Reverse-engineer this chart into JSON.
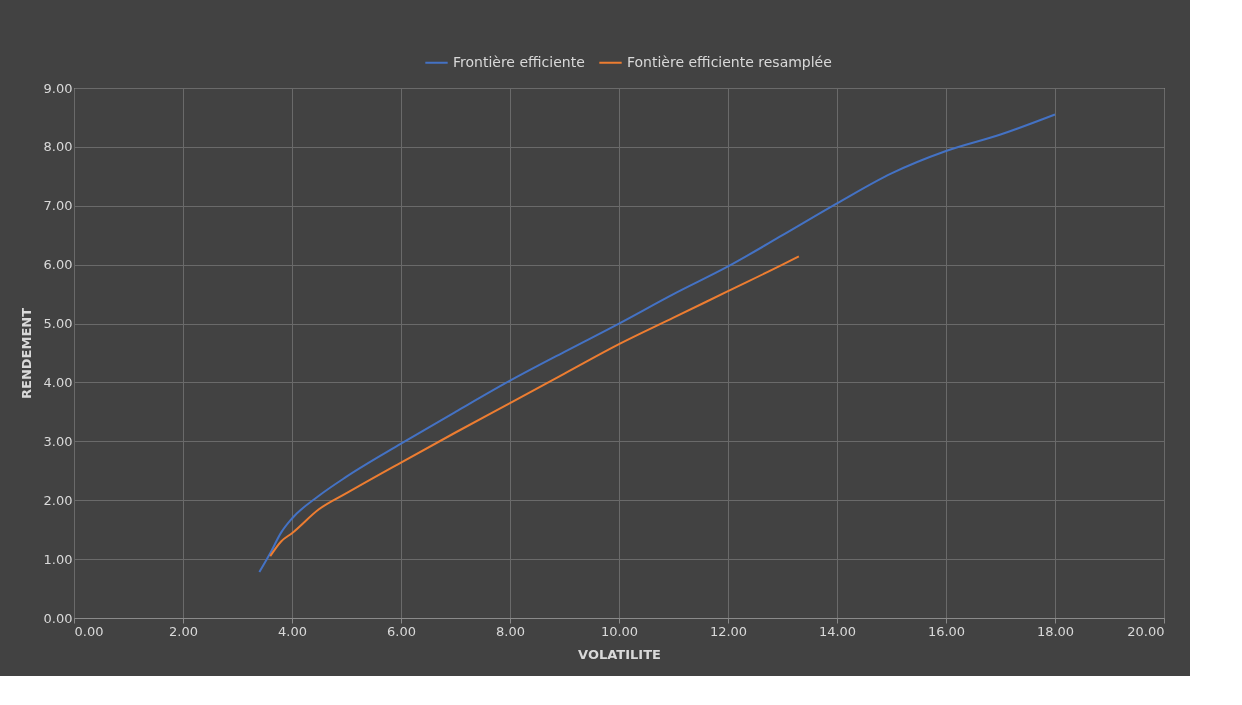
{
  "chart_data": {
    "type": "line",
    "xlabel": "VOLATILITE",
    "ylabel": "RENDEMENT",
    "xlim": [
      0,
      20
    ],
    "xticks": [
      {
        "value": 0,
        "label": "0.00"
      },
      {
        "value": 2,
        "label": "2.00"
      },
      {
        "value": 4,
        "label": "4.00"
      },
      {
        "value": 6,
        "label": "6.00"
      },
      {
        "value": 8,
        "label": "8.00"
      },
      {
        "value": 10,
        "label": "10.00"
      },
      {
        "value": 12,
        "label": "12.00"
      },
      {
        "value": 14,
        "label": "14.00"
      },
      {
        "value": 16,
        "label": "16.00"
      },
      {
        "value": 18,
        "label": "18.00"
      },
      {
        "value": 20,
        "label": "20.00"
      }
    ],
    "ylim": [
      0,
      9
    ],
    "yticks": [
      {
        "value": 0,
        "label": "0.00"
      },
      {
        "value": 1,
        "label": "1.00"
      },
      {
        "value": 2,
        "label": "2.00"
      },
      {
        "value": 3,
        "label": "3.00"
      },
      {
        "value": 4,
        "label": "4.00"
      },
      {
        "value": 5,
        "label": "5.00"
      },
      {
        "value": 6,
        "label": "6.00"
      },
      {
        "value": 7,
        "label": "7.00"
      },
      {
        "value": 8,
        "label": "8.00"
      },
      {
        "value": 9,
        "label": "9.00"
      }
    ],
    "grid": true,
    "legend": "top",
    "marker": "none",
    "line_style": "solid",
    "series": [
      {
        "name": "Frontière efficiente",
        "color": "#4472c4",
        "x": [
          3.4,
          3.6,
          3.8,
          4.0,
          4.5,
          5,
          6,
          7,
          8,
          9,
          10,
          11,
          12,
          13,
          14,
          15,
          16,
          17,
          18.0
        ],
        "values": [
          0.78,
          1.1,
          1.45,
          1.69,
          2.08,
          2.4,
          2.96,
          3.5,
          4.03,
          4.52,
          5.0,
          5.5,
          5.97,
          6.5,
          7.04,
          7.55,
          7.93,
          8.21,
          8.55
        ]
      },
      {
        "name": "Fontière efficiente resamplée",
        "color": "#ed7d31",
        "x": [
          3.6,
          3.8,
          4.0,
          4.5,
          5,
          6,
          7,
          8,
          9,
          10,
          11,
          12,
          13,
          13.3
        ],
        "values": [
          1.05,
          1.3,
          1.44,
          1.85,
          2.12,
          2.64,
          3.15,
          3.65,
          4.15,
          4.65,
          5.1,
          5.55,
          6.0,
          6.14
        ]
      }
    ]
  }
}
